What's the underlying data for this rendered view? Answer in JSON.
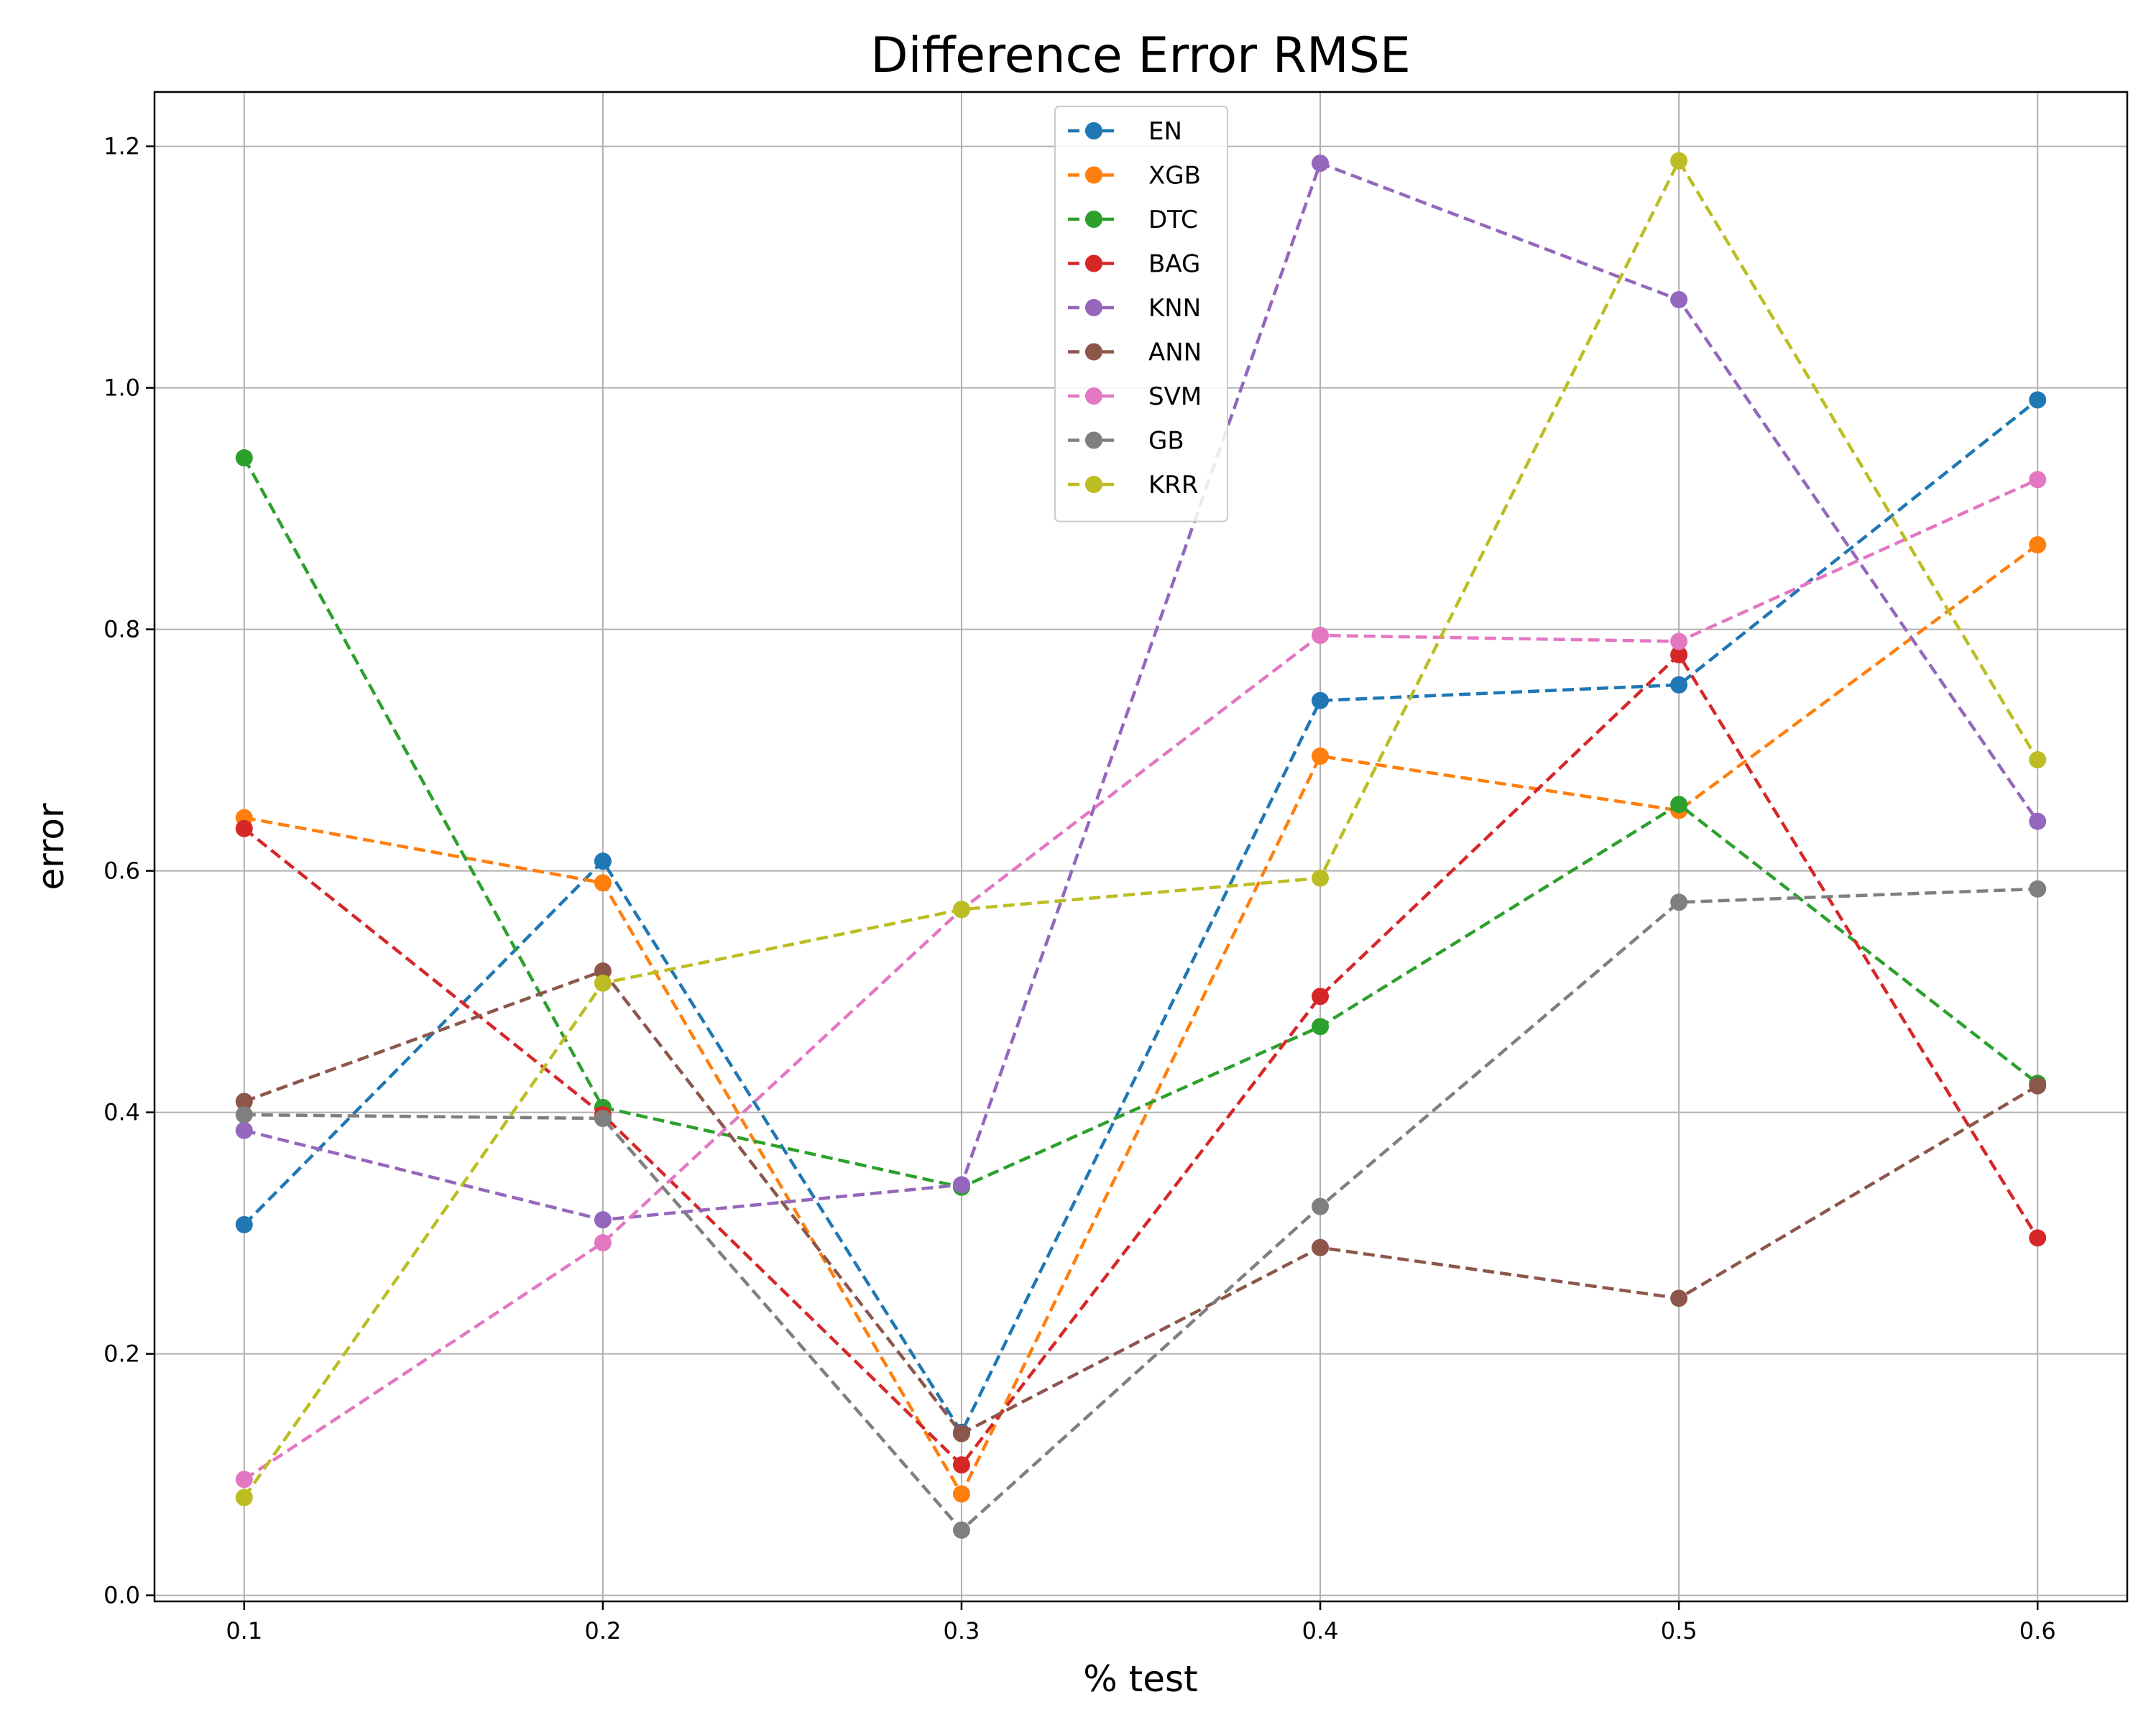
{
  "chart_data": {
    "type": "line",
    "title": "Difference Error RMSE",
    "xlabel": "% test",
    "ylabel": "error",
    "x": [
      0.1,
      0.2,
      0.3,
      0.4,
      0.5,
      0.6
    ],
    "xlim": [
      0.075,
      0.625
    ],
    "ylim": [
      -0.005,
      1.245
    ],
    "xticks": [
      "0.1",
      "0.2",
      "0.3",
      "0.4",
      "0.5",
      "0.6"
    ],
    "yticks": [
      "0.0",
      "0.2",
      "0.4",
      "0.6",
      "0.8",
      "1.0",
      "1.2"
    ],
    "grid": true,
    "legend_position": "top-center",
    "line_style": "dashed",
    "marker": "circle",
    "series": [
      {
        "name": "EN",
        "color": "#1f77b4",
        "values": [
          0.307,
          0.608,
          0.135,
          0.741,
          0.754,
          0.99
        ]
      },
      {
        "name": "XGB",
        "color": "#ff7f0e",
        "values": [
          0.644,
          0.59,
          0.084,
          0.695,
          0.65,
          0.87
        ]
      },
      {
        "name": "DTC",
        "color": "#2ca02c",
        "values": [
          0.942,
          0.404,
          0.338,
          0.471,
          0.655,
          0.424
        ]
      },
      {
        "name": "BAG",
        "color": "#d62728",
        "values": [
          0.635,
          0.398,
          0.108,
          0.496,
          0.779,
          0.296
        ]
      },
      {
        "name": "KNN",
        "color": "#9467bd",
        "values": [
          0.385,
          0.311,
          0.34,
          1.186,
          1.073,
          0.641
        ]
      },
      {
        "name": "ANN",
        "color": "#8c564b",
        "values": [
          0.409,
          0.517,
          0.134,
          0.288,
          0.246,
          0.422
        ]
      },
      {
        "name": "SVM",
        "color": "#e377c2",
        "values": [
          0.096,
          0.292,
          0.568,
          0.795,
          0.79,
          0.924
        ]
      },
      {
        "name": "GB",
        "color": "#7f7f7f",
        "values": [
          0.398,
          0.395,
          0.054,
          0.322,
          0.574,
          0.585
        ]
      },
      {
        "name": "KRR",
        "color": "#bcbd22",
        "values": [
          0.081,
          0.507,
          0.568,
          0.594,
          1.188,
          0.692
        ]
      }
    ]
  }
}
